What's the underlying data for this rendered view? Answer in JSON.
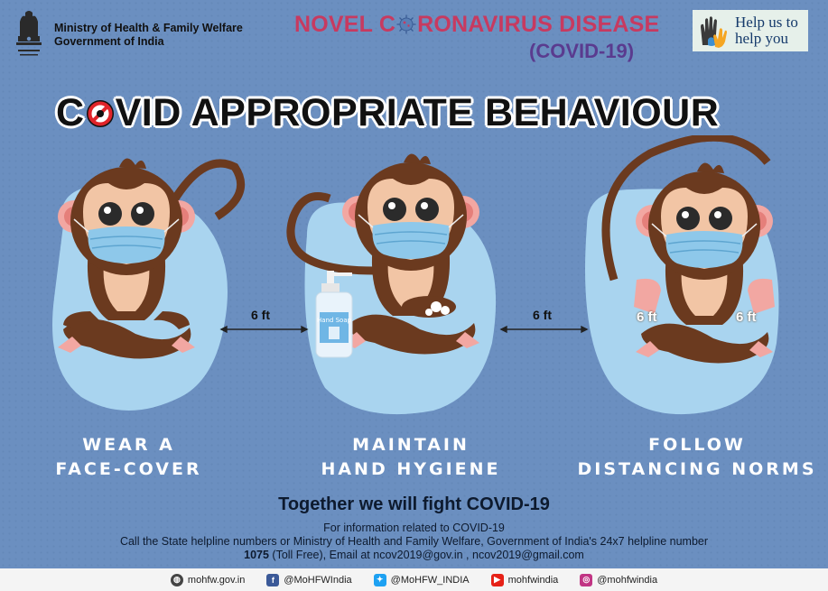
{
  "header": {
    "ministry_line1": "Ministry of Health & Family Welfare",
    "ministry_line2": "Government of India",
    "campaign_prefix": "NOVEL C",
    "campaign_suffix": "RONAVIRUS DISEASE",
    "campaign_sub": "(COVID-19)",
    "help_line1": "Help us to",
    "help_line2": "help you"
  },
  "title": {
    "prefix": "C",
    "rest": "VID APPROPRIATE BEHAVIOUR"
  },
  "distances": {
    "left_gap": "6 ft",
    "right_gap": "6 ft",
    "hand_left": "6 ft",
    "hand_right": "6 ft"
  },
  "soap_label": "Hand Soap",
  "captions": {
    "face_line1": "WEAR A",
    "face_line2": "FACE-COVER",
    "hand_line1": "MAINTAIN",
    "hand_line2": "HAND HYGIENE",
    "dist_line1": "FOLLOW",
    "dist_line2": "DISTANCING NORMS"
  },
  "footer_text": {
    "together": "Together we will fight COVID-19",
    "info_line1": "For information related to COVID-19",
    "info_line2": "Call the State helpline numbers or Ministry of Health and Family Welfare, Government of India's 24x7 helpline number",
    "helpline_number": "1075",
    "info_line3_rest": " (Toll Free), Email at ncov2019@gov.in , ncov2019@gmail.com"
  },
  "social": [
    {
      "icon": "globe-icon",
      "label": "mohfw.gov.in",
      "color": "#444444"
    },
    {
      "icon": "facebook-icon",
      "label": "@MoHFWIndia",
      "color": "#3b5998"
    },
    {
      "icon": "twitter-icon",
      "label": "@MoHFW_INDIA",
      "color": "#1da1f2"
    },
    {
      "icon": "youtube-icon",
      "label": "mohfwindia",
      "color": "#e62117"
    },
    {
      "icon": "instagram-icon",
      "label": "@mohfwindia",
      "color": "#c13584"
    }
  ],
  "colors": {
    "background": "#6b8fc0",
    "campaign_pink": "#c73a60",
    "campaign_purple": "#5a3b8f",
    "monkey_brown": "#6b3a1f",
    "mask_blue": "#8ec8ea",
    "blob_blue": "#a9d4ef"
  }
}
